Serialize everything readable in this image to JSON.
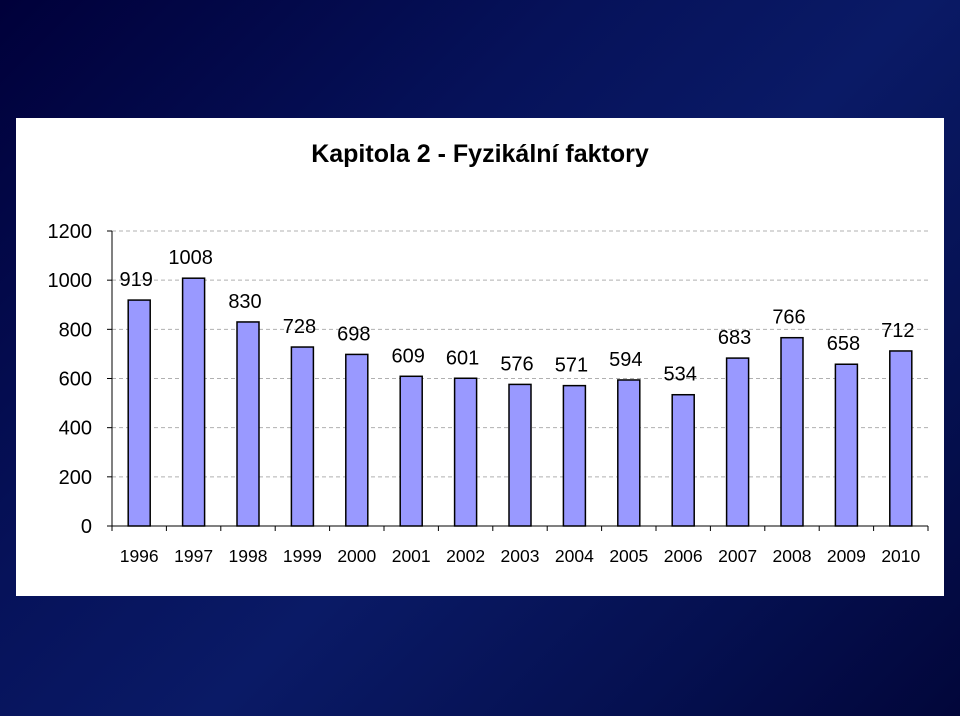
{
  "chart_data": {
    "type": "bar",
    "title": "Kapitola 2 - Fyzikální faktory",
    "categories": [
      "1996",
      "1997",
      "1998",
      "1999",
      "2000",
      "2001",
      "2002",
      "2003",
      "2004",
      "2005",
      "2006",
      "2007",
      "2008",
      "2009",
      "2010"
    ],
    "values": [
      919,
      1008,
      830,
      728,
      698,
      609,
      601,
      576,
      571,
      594,
      534,
      683,
      766,
      658,
      712
    ],
    "value_labels": [
      "919",
      "1008",
      "830",
      "728",
      "698",
      "609",
      "601",
      "576",
      "571",
      "594",
      "534",
      "683",
      "766",
      "658",
      "712"
    ],
    "y_ticks": [
      0,
      200,
      400,
      600,
      800,
      1000,
      1200
    ],
    "y_tick_labels": [
      "0",
      "200",
      "400",
      "600",
      "800",
      "1000",
      "1200"
    ],
    "ylim": [
      0,
      1200
    ],
    "grid": "dashed horizontal",
    "legend": "none",
    "colors": {
      "bar_fill": "#9999ff",
      "bar_stroke": "#000000",
      "grid": "#b0b0b0"
    }
  }
}
